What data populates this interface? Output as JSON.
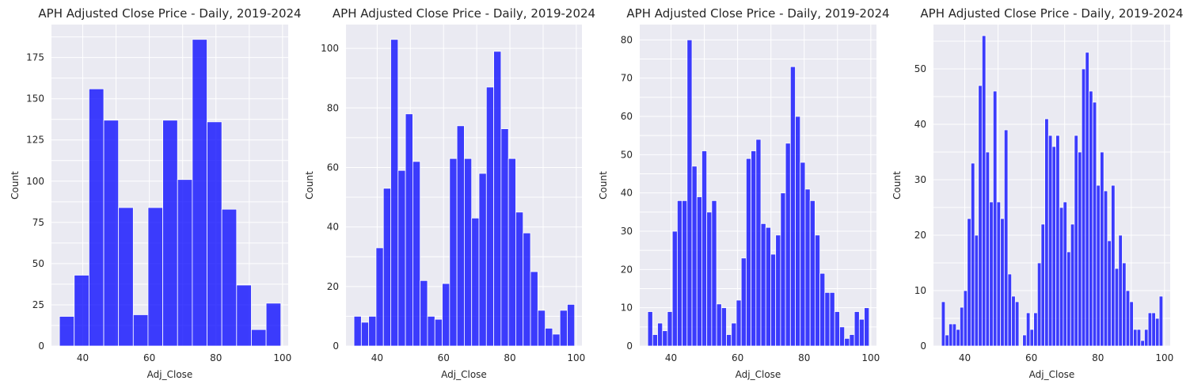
{
  "chart_data": [
    {
      "type": "bar",
      "title": "APH Adjusted Close Price - Daily, 2019-2024",
      "xlabel": "Adj_Close",
      "ylabel": "Count",
      "color": "#0000ff",
      "background": "#eaeaf2",
      "grid": true,
      "xlim": [
        30.6,
        101.7
      ],
      "ylim": [
        0,
        195
      ],
      "xticks": [
        40,
        60,
        80,
        100
      ],
      "yticks": [
        0,
        25,
        50,
        75,
        100,
        125,
        150,
        175
      ],
      "bin_range": [
        33.0,
        99.5
      ],
      "values": [
        18,
        43,
        156,
        137,
        84,
        19,
        84,
        137,
        101,
        186,
        136,
        83,
        37,
        10,
        26
      ]
    },
    {
      "type": "bar",
      "title": "APH Adjusted Close Price - Daily, 2019-2024",
      "xlabel": "Adj_Close",
      "ylabel": "Count",
      "color": "#0000ff",
      "background": "#eaeaf2",
      "grid": true,
      "xlim": [
        30.6,
        101.7
      ],
      "ylim": [
        0,
        108
      ],
      "xticks": [
        40,
        60,
        80,
        100
      ],
      "yticks": [
        0,
        20,
        40,
        60,
        80,
        100
      ],
      "bin_range": [
        33.0,
        99.5
      ],
      "values": [
        10,
        8,
        10,
        33,
        53,
        103,
        59,
        78,
        62,
        22,
        10,
        9,
        21,
        63,
        74,
        63,
        43,
        58,
        87,
        99,
        73,
        63,
        45,
        38,
        25,
        12,
        6,
        4,
        12,
        14
      ]
    },
    {
      "type": "bar",
      "title": "APH Adjusted Close Price - Daily, 2019-2024",
      "xlabel": "Adj_Close",
      "ylabel": "Count",
      "color": "#0000ff",
      "background": "#eaeaf2",
      "grid": true,
      "xlim": [
        30.6,
        101.7
      ],
      "ylim": [
        0,
        84
      ],
      "xticks": [
        40,
        60,
        80,
        100
      ],
      "yticks": [
        0,
        10,
        20,
        30,
        40,
        50,
        60,
        70,
        80
      ],
      "bin_range": [
        33.0,
        99.5
      ],
      "values": [
        9,
        3,
        6,
        4,
        9,
        30,
        38,
        38,
        80,
        47,
        39,
        51,
        35,
        38,
        11,
        10,
        3,
        6,
        12,
        23,
        49,
        51,
        54,
        32,
        31,
        24,
        29,
        40,
        53,
        73,
        60,
        48,
        41,
        38,
        29,
        19,
        14,
        14,
        9,
        5,
        2,
        3,
        9,
        7,
        10
      ]
    },
    {
      "type": "bar",
      "title": "APH Adjusted Close Price - Daily, 2019-2024",
      "xlabel": "Adj_Close",
      "ylabel": "Count",
      "color": "#0000ff",
      "background": "#eaeaf2",
      "grid": true,
      "xlim": [
        30.6,
        101.7
      ],
      "ylim": [
        0,
        58
      ],
      "xticks": [
        40,
        60,
        80,
        100
      ],
      "yticks": [
        0,
        10,
        20,
        30,
        40,
        50
      ],
      "bin_range": [
        33.0,
        99.5
      ],
      "values": [
        8,
        2,
        4,
        4,
        3,
        7,
        10,
        23,
        33,
        20,
        47,
        56,
        35,
        26,
        46,
        26,
        23,
        39,
        13,
        9,
        8,
        0,
        2,
        6,
        3,
        6,
        15,
        22,
        41,
        38,
        36,
        38,
        25,
        26,
        17,
        22,
        38,
        35,
        50,
        53,
        46,
        44,
        29,
        35,
        28,
        19,
        29,
        14,
        20,
        15,
        10,
        8,
        3,
        3,
        1,
        3,
        6,
        6,
        5,
        9
      ]
    }
  ]
}
